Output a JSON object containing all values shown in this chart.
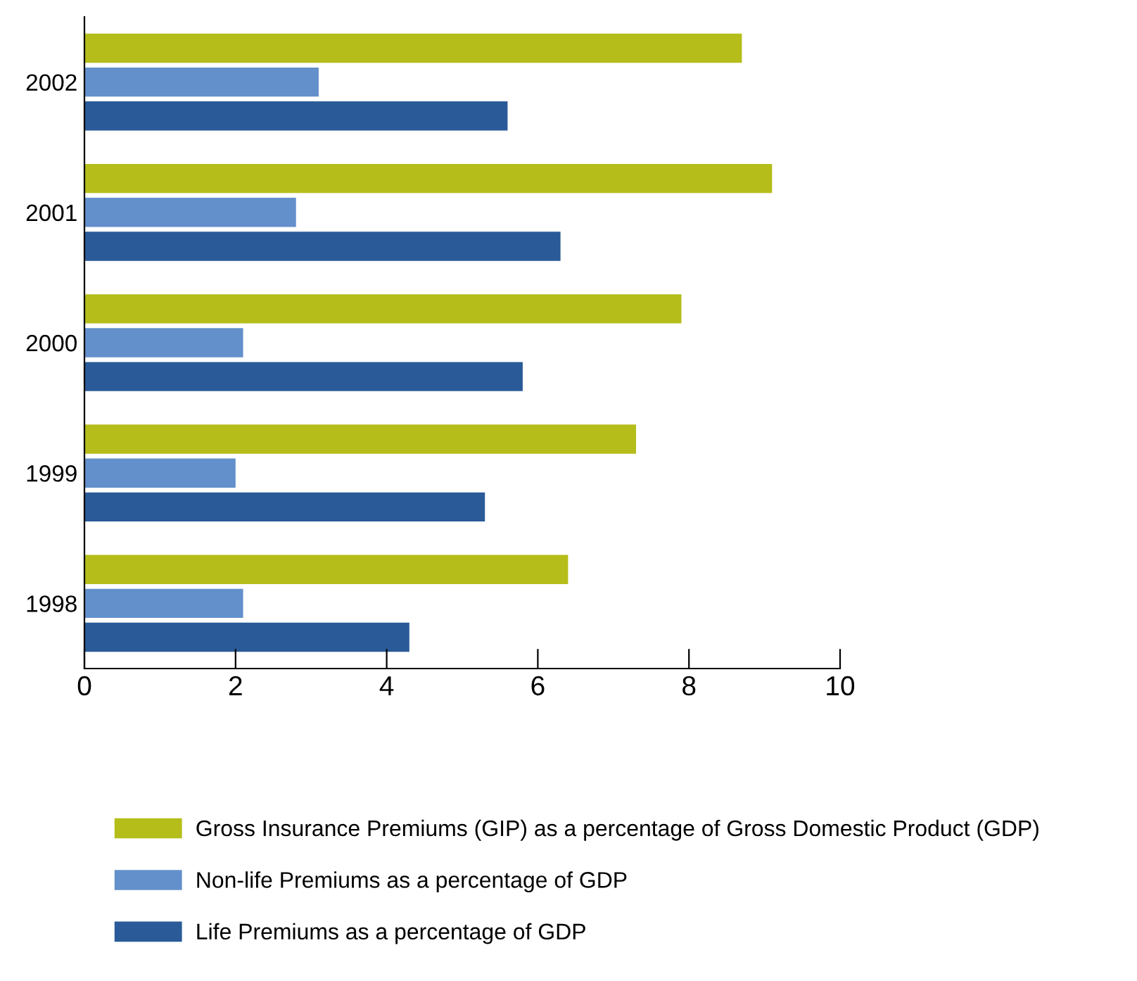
{
  "chart_data": {
    "type": "bar",
    "orientation": "horizontal",
    "categories": [
      "2002",
      "2001",
      "2000",
      "1999",
      "1998"
    ],
    "series": [
      {
        "name": "Gross Insurance Premiums (GIP) as a percentage of Gross Domestic Product (GDP)",
        "color": "#b5bd1a",
        "values": [
          8.7,
          9.1,
          7.9,
          7.3,
          6.4
        ]
      },
      {
        "name": "Non-life Premiums as a percentage of GDP",
        "color": "#6390cb",
        "values": [
          3.1,
          2.8,
          2.1,
          2.0,
          2.1
        ]
      },
      {
        "name": "Life Premiums as a percentage of GDP",
        "color": "#2a5b98",
        "values": [
          5.6,
          6.3,
          5.8,
          5.3,
          4.3
        ]
      }
    ],
    "xlim": [
      0,
      10
    ],
    "xticks": [
      0,
      2,
      4,
      6,
      8,
      10
    ],
    "grid": false,
    "legend": "bottom"
  }
}
